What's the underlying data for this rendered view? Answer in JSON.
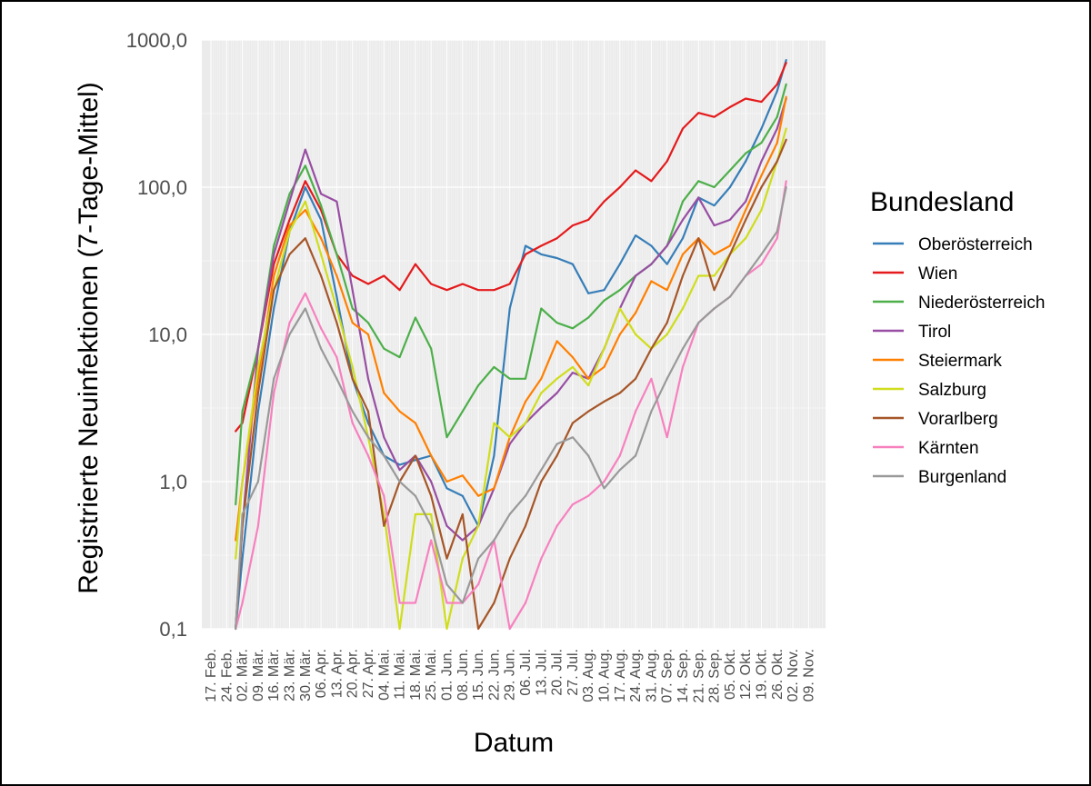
{
  "chart_data": {
    "type": "line",
    "title": "",
    "xlabel": "Datum",
    "ylabel": "Registrierte Neuinfektionen (7-Tage-Mittel)",
    "y_scale": "log",
    "ylim": [
      0.1,
      1000
    ],
    "grid": true,
    "legend_position": "right",
    "legend_title": "Bundesland",
    "y_ticks": [
      {
        "value": 0.1,
        "label": "0,1"
      },
      {
        "value": 1,
        "label": "1,0"
      },
      {
        "value": 10,
        "label": "10,0"
      },
      {
        "value": 100,
        "label": "100,0"
      },
      {
        "value": 1000,
        "label": "1000,0"
      }
    ],
    "x_ticks": [
      "17. Feb.",
      "24. Feb.",
      "02. Mär.",
      "09. Mär.",
      "16. Mär.",
      "23. Mär.",
      "30. Mär.",
      "06. Apr.",
      "13. Apr.",
      "20. Apr.",
      "27. Apr.",
      "04. Mai.",
      "11. Mai.",
      "18. Mai.",
      "25. Mai.",
      "01. Jun.",
      "08. Jun.",
      "15. Jun.",
      "22. Jun.",
      "29. Jun.",
      "06. Jul.",
      "13. Jul.",
      "20. Jul.",
      "27. Jul.",
      "03. Aug.",
      "10. Aug.",
      "17. Aug.",
      "24. Aug.",
      "31. Aug.",
      "07. Sep.",
      "14. Sep.",
      "21. Sep.",
      "28. Sep.",
      "05. Okt.",
      "12. Okt.",
      "19. Okt.",
      "26. Okt.",
      "02. Nov.",
      "09. Nov."
    ],
    "series": [
      {
        "name": "Oberösterreich",
        "color": "#377eb8",
        "x": [
          "28. Feb.",
          "02. Mär.",
          "09. Mär.",
          "16. Mär.",
          "23. Mär.",
          "30. Mär.",
          "06. Apr.",
          "13. Apr.",
          "20. Apr.",
          "27. Apr.",
          "04. Mai.",
          "11. Mai.",
          "18. Mai.",
          "25. Mai.",
          "01. Jun.",
          "08. Jun.",
          "15. Jun.",
          "22. Jun.",
          "29. Jun.",
          "06. Jul.",
          "13. Jul.",
          "20. Jul.",
          "27. Jul.",
          "03. Aug.",
          "10. Aug.",
          "17. Aug.",
          "24. Aug.",
          "31. Aug.",
          "07. Sep.",
          "14. Sep.",
          "21. Sep.",
          "28. Sep.",
          "05. Okt.",
          "12. Okt.",
          "19. Okt.",
          "26. Okt.",
          "30. Okt."
        ],
        "y": [
          0.1,
          0.3,
          3,
          15,
          50,
          100,
          60,
          18,
          5,
          2.5,
          1.5,
          1.3,
          1.4,
          1.5,
          0.9,
          0.8,
          0.5,
          1.5,
          15,
          40,
          35,
          33,
          30,
          19,
          20,
          30,
          47,
          40,
          30,
          45,
          85,
          75,
          100,
          150,
          250,
          450,
          730
        ]
      },
      {
        "name": "Wien",
        "color": "#e41a1c",
        "x": [
          "28. Feb.",
          "02. Mär.",
          "09. Mär.",
          "16. Mär.",
          "23. Mär.",
          "30. Mär.",
          "06. Apr.",
          "13. Apr.",
          "20. Apr.",
          "27. Apr.",
          "04. Mai.",
          "11. Mai.",
          "18. Mai.",
          "25. Mai.",
          "01. Jun.",
          "08. Jun.",
          "15. Jun.",
          "22. Jun.",
          "29. Jun.",
          "06. Jul.",
          "13. Jul.",
          "20. Jul.",
          "27. Jul.",
          "03. Aug.",
          "10. Aug.",
          "17. Aug.",
          "24. Aug.",
          "31. Aug.",
          "07. Sep.",
          "14. Sep.",
          "21. Sep.",
          "28. Sep.",
          "05. Okt.",
          "12. Okt.",
          "19. Okt.",
          "26. Okt.",
          "30. Okt."
        ],
        "y": [
          2.2,
          2.5,
          8,
          30,
          60,
          110,
          70,
          35,
          25,
          22,
          25,
          20,
          30,
          22,
          20,
          22,
          20,
          20,
          22,
          35,
          40,
          45,
          55,
          60,
          80,
          100,
          130,
          110,
          150,
          250,
          320,
          300,
          350,
          400,
          380,
          500,
          700
        ]
      },
      {
        "name": "Niederösterreich",
        "color": "#4daf4a",
        "x": [
          "28. Feb.",
          "02. Mär.",
          "09. Mär.",
          "16. Mär.",
          "23. Mär.",
          "30. Mär.",
          "06. Apr.",
          "13. Apr.",
          "20. Apr.",
          "27. Apr.",
          "04. Mai.",
          "11. Mai.",
          "18. Mai.",
          "25. Mai.",
          "01. Jun.",
          "08. Jun.",
          "15. Jun.",
          "22. Jun.",
          "29. Jun.",
          "06. Jul.",
          "13. Jul.",
          "20. Jul.",
          "27. Jul.",
          "03. Aug.",
          "10. Aug.",
          "17. Aug.",
          "24. Aug.",
          "31. Aug.",
          "07. Sep.",
          "14. Sep.",
          "21. Sep.",
          "28. Sep.",
          "05. Okt.",
          "12. Okt.",
          "19. Okt.",
          "26. Okt.",
          "30. Okt."
        ],
        "y": [
          0.7,
          3,
          8,
          40,
          90,
          140,
          75,
          35,
          15,
          12,
          8,
          7,
          13,
          8,
          2,
          3,
          4.5,
          6,
          5,
          5,
          15,
          12,
          11,
          13,
          17,
          20,
          25,
          30,
          40,
          80,
          110,
          100,
          130,
          170,
          200,
          300,
          500
        ]
      },
      {
        "name": "Tirol",
        "color": "#984ea3",
        "x": [
          "28. Feb.",
          "02. Mär.",
          "09. Mär.",
          "16. Mär.",
          "23. Mär.",
          "30. Mär.",
          "06. Apr.",
          "13. Apr.",
          "20. Apr.",
          "27. Apr.",
          "04. Mai.",
          "11. Mai.",
          "18. Mai.",
          "25. Mai.",
          "01. Jun.",
          "08. Jun.",
          "15. Jun.",
          "22. Jun.",
          "29. Jun.",
          "06. Jul.",
          "13. Jul.",
          "20. Jul.",
          "27. Jul.",
          "03. Aug.",
          "10. Aug.",
          "17. Aug.",
          "24. Aug.",
          "31. Aug.",
          "07. Sep.",
          "14. Sep.",
          "21. Sep.",
          "28. Sep.",
          "05. Okt.",
          "12. Okt.",
          "19. Okt.",
          "26. Okt.",
          "30. Okt."
        ],
        "y": [
          0.1,
          0.5,
          8,
          35,
          80,
          180,
          90,
          80,
          20,
          5,
          2,
          1.2,
          1.5,
          1.0,
          0.5,
          0.4,
          0.5,
          0.9,
          1.8,
          2.5,
          3.2,
          4,
          5.5,
          5,
          8,
          15,
          25,
          30,
          40,
          60,
          85,
          55,
          60,
          80,
          150,
          250,
          400
        ]
      },
      {
        "name": "Steiermark",
        "color": "#ff7f00",
        "x": [
          "28. Feb.",
          "02. Mär.",
          "09. Mär.",
          "16. Mär.",
          "23. Mär.",
          "30. Mär.",
          "06. Apr.",
          "13. Apr.",
          "20. Apr.",
          "27. Apr.",
          "04. Mai.",
          "11. Mai.",
          "18. Mai.",
          "25. Mai.",
          "01. Jun.",
          "08. Jun.",
          "15. Jun.",
          "22. Jun.",
          "29. Jun.",
          "06. Jul.",
          "13. Jul.",
          "20. Jul.",
          "27. Jul.",
          "03. Aug.",
          "10. Aug.",
          "17. Aug.",
          "24. Aug.",
          "31. Aug.",
          "07. Sep.",
          "14. Sep.",
          "21. Sep.",
          "28. Sep.",
          "05. Okt.",
          "12. Okt.",
          "19. Okt.",
          "26. Okt.",
          "30. Okt."
        ],
        "y": [
          0.4,
          1,
          5,
          25,
          55,
          70,
          45,
          25,
          12,
          10,
          4,
          3,
          2.5,
          1.5,
          1.0,
          1.1,
          0.8,
          0.9,
          2,
          3.5,
          5,
          9,
          7,
          5,
          6,
          10,
          14,
          23,
          20,
          35,
          45,
          35,
          40,
          70,
          120,
          200,
          410
        ]
      },
      {
        "name": "Salzburg",
        "color": "#cfdd1c",
        "x": [
          "28. Feb.",
          "02. Mär.",
          "09. Mär.",
          "16. Mär.",
          "23. Mär.",
          "30. Mär.",
          "06. Apr.",
          "13. Apr.",
          "20. Apr.",
          "27. Apr.",
          "04. Mai.",
          "11. Mai.",
          "18. Mai.",
          "25. Mai.",
          "01. Jun.",
          "08. Jun.",
          "15. Jun.",
          "22. Jun.",
          "29. Jun.",
          "06. Jul.",
          "13. Jul.",
          "20. Jul.",
          "27. Jul.",
          "03. Aug.",
          "10. Aug.",
          "17. Aug.",
          "24. Aug.",
          "31. Aug.",
          "07. Sep.",
          "14. Sep.",
          "21. Sep.",
          "28. Sep.",
          "05. Okt.",
          "12. Okt.",
          "19. Okt.",
          "26. Okt.",
          "30. Okt."
        ],
        "y": [
          0.3,
          1,
          6,
          20,
          50,
          80,
          35,
          15,
          6,
          2,
          0.6,
          0.1,
          0.6,
          0.6,
          0.1,
          0.3,
          0.5,
          2.5,
          2,
          2.5,
          4,
          5,
          6,
          4.5,
          8,
          15,
          10,
          8,
          10,
          15,
          25,
          25,
          35,
          45,
          70,
          150,
          250
        ]
      },
      {
        "name": "Vorarlberg",
        "color": "#a65628",
        "x": [
          "28. Feb.",
          "02. Mär.",
          "09. Mär.",
          "16. Mär.",
          "23. Mär.",
          "30. Mär.",
          "06. Apr.",
          "13. Apr.",
          "20. Apr.",
          "27. Apr.",
          "04. Mai.",
          "11. Mai.",
          "18. Mai.",
          "25. Mai.",
          "01. Jun.",
          "08. Jun.",
          "15. Jun.",
          "22. Jun.",
          "29. Jun.",
          "06. Jul.",
          "13. Jul.",
          "20. Jul.",
          "27. Jul.",
          "03. Aug.",
          "10. Aug.",
          "17. Aug.",
          "24. Aug.",
          "31. Aug.",
          "07. Sep.",
          "14. Sep.",
          "21. Sep.",
          "28. Sep.",
          "05. Okt.",
          "12. Okt.",
          "19. Okt.",
          "26. Okt.",
          "30. Okt."
        ],
        "y": [
          0.1,
          0.5,
          4,
          20,
          35,
          45,
          25,
          12,
          5,
          3,
          0.5,
          1,
          1.5,
          0.8,
          0.3,
          0.6,
          0.1,
          0.15,
          0.3,
          0.5,
          1.0,
          1.5,
          2.5,
          3,
          3.5,
          4,
          5,
          8,
          12,
          25,
          45,
          20,
          35,
          60,
          100,
          150,
          210
        ]
      },
      {
        "name": "Kärnten",
        "color": "#f781bf",
        "x": [
          "28. Feb.",
          "02. Mär.",
          "09. Mär.",
          "16. Mär.",
          "23. Mär.",
          "30. Mär.",
          "06. Apr.",
          "13. Apr.",
          "20. Apr.",
          "27. Apr.",
          "04. Mai.",
          "11. Mai.",
          "18. Mai.",
          "25. Mai.",
          "01. Jun.",
          "08. Jun.",
          "15. Jun.",
          "22. Jun.",
          "29. Jun.",
          "06. Jul.",
          "13. Jul.",
          "20. Jul.",
          "27. Jul.",
          "03. Aug.",
          "10. Aug.",
          "17. Aug.",
          "24. Aug.",
          "31. Aug.",
          "07. Sep.",
          "14. Sep.",
          "21. Sep.",
          "28. Sep.",
          "05. Okt.",
          "12. Okt.",
          "19. Okt.",
          "26. Okt.",
          "30. Okt."
        ],
        "y": [
          0.1,
          0.15,
          0.5,
          4,
          12,
          19,
          11,
          7,
          2.5,
          1.5,
          0.8,
          0.15,
          0.15,
          0.4,
          0.15,
          0.15,
          0.2,
          0.4,
          0.1,
          0.15,
          0.3,
          0.5,
          0.7,
          0.8,
          1.0,
          1.5,
          3,
          5,
          2,
          6,
          12,
          15,
          18,
          25,
          30,
          45,
          110
        ]
      },
      {
        "name": "Burgenland",
        "color": "#999999",
        "x": [
          "28. Feb.",
          "02. Mär.",
          "09. Mär.",
          "16. Mär.",
          "23. Mär.",
          "30. Mär.",
          "06. Apr.",
          "13. Apr.",
          "20. Apr.",
          "27. Apr.",
          "04. Mai.",
          "11. Mai.",
          "18. Mai.",
          "25. Mai.",
          "01. Jun.",
          "08. Jun.",
          "15. Jun.",
          "22. Jun.",
          "29. Jun.",
          "06. Jul.",
          "13. Jul.",
          "20. Jul.",
          "27. Jul.",
          "03. Aug.",
          "10. Aug.",
          "17. Aug.",
          "24. Aug.",
          "31. Aug.",
          "07. Sep.",
          "14. Sep.",
          "21. Sep.",
          "28. Sep.",
          "05. Okt.",
          "12. Okt.",
          "19. Okt.",
          "26. Okt.",
          "30. Okt."
        ],
        "y": [
          0.1,
          0.6,
          1,
          5,
          10,
          15,
          8,
          5,
          3,
          2,
          1.5,
          1,
          0.8,
          0.5,
          0.2,
          0.15,
          0.3,
          0.4,
          0.6,
          0.8,
          1.2,
          1.8,
          2,
          1.5,
          0.9,
          1.2,
          1.5,
          3,
          5,
          8,
          12,
          15,
          18,
          25,
          35,
          50,
          100
        ]
      }
    ]
  }
}
